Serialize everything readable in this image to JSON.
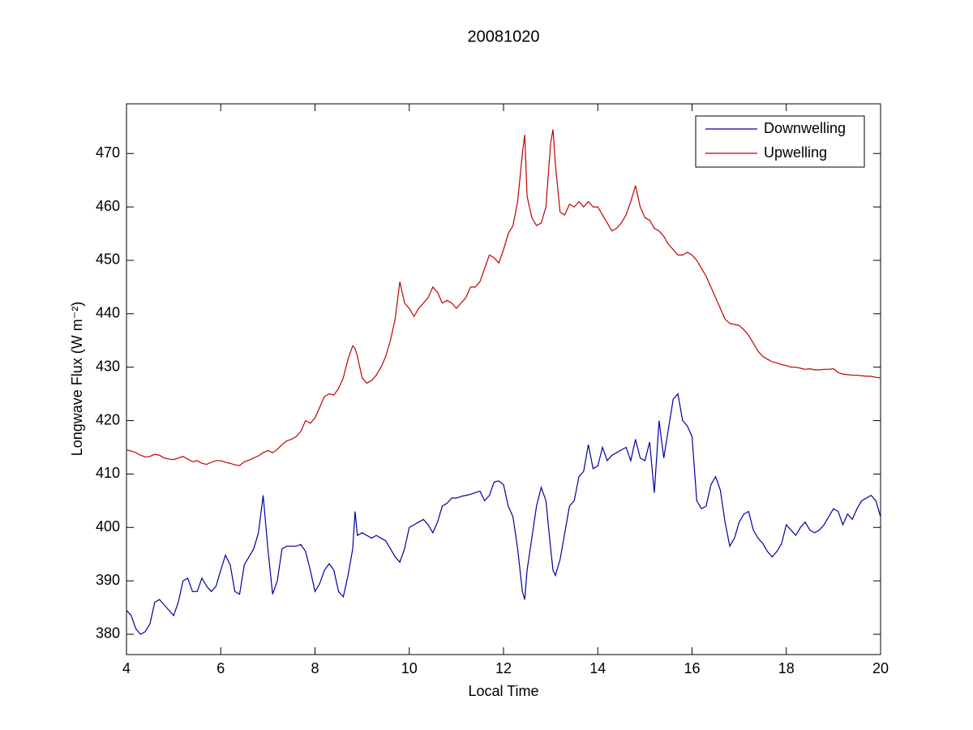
{
  "chart_data": {
    "type": "line",
    "title": "20081020",
    "xlabel": "Local Time",
    "ylabel": "Longwave Flux (W m⁻²)",
    "x": [
      4,
      4.1,
      4.2,
      4.3,
      4.4,
      4.5,
      4.6,
      4.7,
      4.8,
      4.9,
      5,
      5.1,
      5.2,
      5.3,
      5.4,
      5.5,
      5.6,
      5.7,
      5.8,
      5.9,
      6,
      6.1,
      6.2,
      6.3,
      6.4,
      6.5,
      6.6,
      6.7,
      6.8,
      6.9,
      7,
      7.1,
      7.2,
      7.3,
      7.4,
      7.5,
      7.6,
      7.7,
      7.8,
      7.9,
      8,
      8.1,
      8.2,
      8.3,
      8.4,
      8.5,
      8.6,
      8.7,
      8.8,
      8.85,
      8.9,
      9,
      9.1,
      9.2,
      9.3,
      9.4,
      9.5,
      9.6,
      9.7,
      9.8,
      9.9,
      10,
      10.1,
      10.2,
      10.3,
      10.4,
      10.5,
      10.6,
      10.7,
      10.8,
      10.9,
      11,
      11.1,
      11.2,
      11.3,
      11.4,
      11.5,
      11.6,
      11.7,
      11.8,
      11.9,
      12,
      12.1,
      12.2,
      12.3,
      12.4,
      12.45,
      12.5,
      12.6,
      12.7,
      12.8,
      12.9,
      13,
      13.05,
      13.1,
      13.2,
      13.3,
      13.4,
      13.5,
      13.6,
      13.7,
      13.8,
      13.9,
      14,
      14.1,
      14.2,
      14.3,
      14.4,
      14.5,
      14.6,
      14.7,
      14.8,
      14.9,
      15,
      15.1,
      15.2,
      15.3,
      15.4,
      15.5,
      15.6,
      15.7,
      15.8,
      15.9,
      16,
      16.1,
      16.2,
      16.3,
      16.4,
      16.5,
      16.6,
      16.7,
      16.8,
      16.9,
      17,
      17.1,
      17.2,
      17.3,
      17.4,
      17.5,
      17.6,
      17.7,
      17.8,
      17.9,
      18,
      18.1,
      18.2,
      18.3,
      18.4,
      18.5,
      18.6,
      18.7,
      18.8,
      18.9,
      19,
      19.1,
      19.2,
      19.3,
      19.4,
      19.5,
      19.6,
      19.7,
      19.8,
      19.9,
      20
    ],
    "series": [
      {
        "name": "Downwelling",
        "color": "#0000a0",
        "values": [
          384.5,
          383.5,
          381,
          380,
          380.5,
          382,
          386,
          386.5,
          385.5,
          384.5,
          383.5,
          386,
          390,
          390.5,
          388,
          388,
          390.5,
          389,
          388,
          389,
          392,
          394.8,
          393,
          388,
          387.5,
          393,
          394.5,
          396,
          399,
          406,
          396,
          387.5,
          390,
          396,
          396.5,
          396.5,
          396.5,
          396.8,
          395.5,
          392,
          388,
          389.5,
          392,
          393.2,
          392,
          388,
          387,
          391,
          396,
          403,
          398.5,
          399,
          398.5,
          398,
          398.5,
          398,
          397.5,
          396,
          394.5,
          393.5,
          396,
          400,
          400.5,
          401,
          401.5,
          400.5,
          399,
          401,
          404,
          404.5,
          405.5,
          405.5,
          405.8,
          406,
          406.2,
          406.5,
          406.8,
          405,
          406,
          408.5,
          408.7,
          408,
          404,
          402,
          396,
          388,
          386.5,
          392,
          398,
          404,
          407.5,
          405,
          396,
          392,
          391,
          394,
          399,
          404,
          405,
          409.5,
          410.5,
          415.5,
          411,
          411.5,
          415,
          412.5,
          413.5,
          414,
          414.5,
          415,
          412.5,
          416.5,
          413,
          412.5,
          416,
          406.5,
          420,
          413,
          418.5,
          424,
          425,
          420,
          419,
          417,
          405,
          403.5,
          404,
          408,
          409.5,
          407,
          401,
          396.5,
          398,
          401,
          402.5,
          403,
          399.5,
          398,
          397,
          395.5,
          394.5,
          395.5,
          397,
          400.5,
          399.5,
          398.5,
          400,
          401,
          399.5,
          399,
          399.5,
          400.5,
          402,
          403.5,
          403,
          400.5,
          402.5,
          401.5,
          403.5,
          405,
          405.5,
          406,
          405,
          402
        ]
      },
      {
        "name": "Upwelling",
        "color": "#c00000",
        "values": [
          414.5,
          414.3,
          414,
          413.5,
          413.2,
          413.3,
          413.7,
          413.5,
          413,
          412.8,
          412.7,
          413,
          413.3,
          412.8,
          412.3,
          412.5,
          412,
          411.8,
          412.2,
          412.5,
          412.5,
          412.2,
          412,
          411.7,
          411.6,
          412.3,
          412.6,
          413,
          413.4,
          414,
          414.4,
          414,
          414.6,
          415.5,
          416.2,
          416.5,
          417,
          418,
          420,
          419.5,
          420.5,
          422.5,
          424.5,
          425,
          424.8,
          426,
          428,
          431.5,
          434,
          433.5,
          432,
          428,
          427,
          427.5,
          428.5,
          430,
          432,
          435,
          439,
          446,
          442,
          441,
          439.5,
          441,
          442,
          443,
          445,
          444,
          442,
          442.5,
          442,
          441,
          442,
          443,
          445,
          445,
          446,
          448.5,
          451,
          450.5,
          449.5,
          452,
          455,
          456.5,
          461,
          470,
          473.5,
          462,
          458,
          456.5,
          457,
          460,
          472,
          474.5,
          468,
          459,
          458.5,
          460.5,
          460,
          461,
          460,
          461,
          460,
          460,
          458.5,
          457,
          455.5,
          456,
          457,
          458.5,
          461,
          464,
          460,
          458,
          457.5,
          456,
          455.5,
          454.5,
          453,
          452,
          451,
          451,
          451.5,
          451,
          450,
          448.5,
          447,
          445,
          443,
          441,
          439,
          438.2,
          438,
          437.8,
          437,
          436,
          434.5,
          433,
          432,
          431.5,
          431,
          430.8,
          430.5,
          430.3,
          430,
          430,
          429.8,
          429.6,
          429.7,
          429.5,
          429.5,
          429.6,
          429.6,
          429.7,
          429,
          428.7,
          428.6,
          428.5,
          428.5,
          428.4,
          428.3,
          428.3,
          428.1,
          428
        ]
      }
    ],
    "xlim": [
      4,
      20
    ],
    "xticks": [
      4,
      6,
      8,
      10,
      12,
      14,
      16,
      18,
      20
    ],
    "ylim": [
      376.2,
      479.3
    ],
    "yticks": [
      380,
      390,
      400,
      410,
      420,
      430,
      440,
      450,
      460,
      470
    ],
    "legend": "northeast"
  }
}
